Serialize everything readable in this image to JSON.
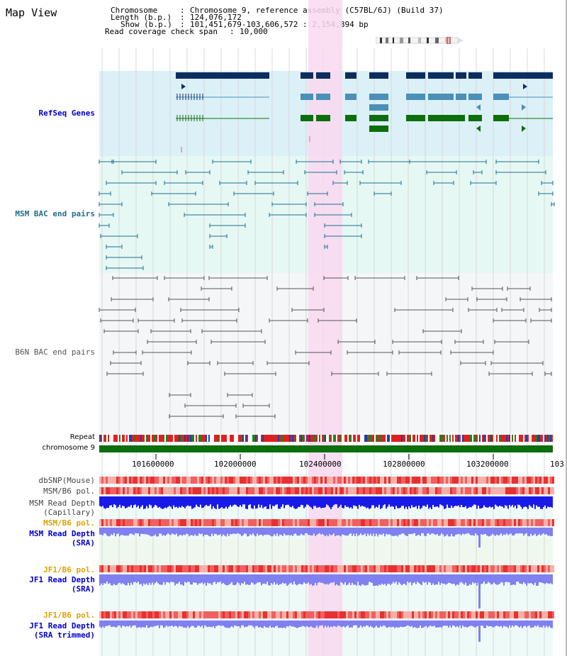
{
  "header": {
    "title": "Map View",
    "chromosome_key": "Chromosome",
    "chromosome_val": "Chromosome 9, reference assembly (C57BL/6J) (Build 37)",
    "length_key": "Length (b.p.)",
    "length_val": "124,076,172",
    "show_key": "Show (b.p.)",
    "show_val": "101,451,679-103,606,572 : 2,154,894 bp",
    "coverage_key": "Read coverage check span",
    "coverage_val": "10,000"
  },
  "tracks": {
    "refseq": "RefSeq Genes",
    "msm_bac": "MSM BAC end pairs",
    "b6n_bac": "B6N BAC end pairs",
    "repeat": "Repeat",
    "chromosome": "chromosome 9",
    "dbsnp": "dbSNP(Mouse)",
    "msm_b6_pol": "MSM/B6 pol.",
    "msm_depth_cap_1": "MSM Read Depth",
    "msm_depth_cap_2": "(Capillary)",
    "msm_b6_pol_2": "MSM/B6 pol.",
    "msm_depth_sra_1": "MSM Read Depth",
    "msm_depth_sra_2": "(SRA)",
    "jf1_b6_pol": "JF1/B6 pol.",
    "jf1_depth_sra_1": "JF1 Read Depth",
    "jf1_depth_sra_2": "(SRA)",
    "jf1_b6_pol_2": "JF1/B6 pol.",
    "jf1_depth_trim_1": "JF1 Read Depth",
    "jf1_depth_trim_2": "(SRA trimmed)"
  },
  "axis_ticks": [
    "101600000",
    "102000000",
    "102400000",
    "102800000",
    "103200000",
    "103"
  ],
  "colors": {
    "refseq_bg": "#dcf0f8",
    "msm_bg": "#e6f8f4",
    "b6n_bg": "#f4f6f8",
    "highlight": "#f9d8f0",
    "gene_dark": "#0c2d5e",
    "gene_mid": "#4a90b8",
    "gene_green": "#0d6e0d",
    "msm_line": "#1f6e8c",
    "b6n_line": "#555555",
    "chrom_green": "#0d6e0d",
    "depth_blue": "#1a1ae8",
    "depth_light": "#8080f0",
    "label_blue": "#0000cc",
    "label_orange": "#e0a000",
    "label_teal": "#1f6e8c",
    "pol_red": "#f04040"
  }
}
